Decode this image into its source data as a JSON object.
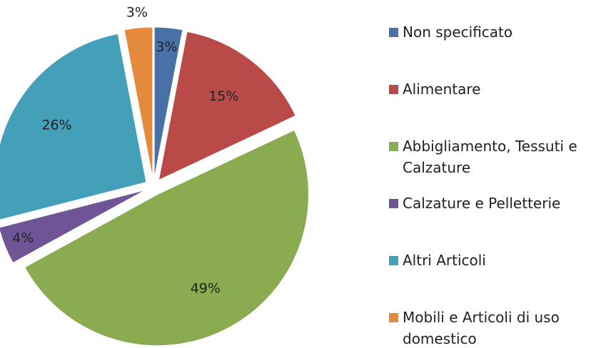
{
  "chart_data": {
    "type": "pie",
    "categories": [
      "Non specificato",
      "Alimentare",
      "Abbigliamento, Tessuti e Calzature",
      "Calzature e Pelletterie",
      "Altri Articoli",
      "Mobili e Articoli di uso domestico"
    ],
    "values": [
      3,
      15,
      49,
      4,
      26,
      3
    ],
    "value_labels": [
      "3%",
      "15%",
      "49%",
      "4%",
      "26%",
      "3%"
    ],
    "colors": [
      "#4a70a8",
      "#b94a48",
      "#8aab4f",
      "#6f5596",
      "#44a0b9",
      "#e5893c"
    ],
    "legend": "right"
  }
}
